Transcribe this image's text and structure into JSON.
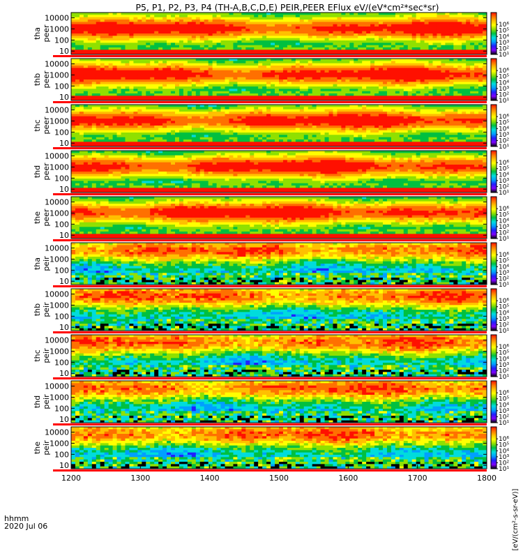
{
  "chart_data": {
    "type": "heatmap",
    "title": "P5, P1, P2, P3, P4 (TH-A,B,C,D,E) PEIR,PEER EFlux eV/(eV*cm²*sec*sr)",
    "colorbar_label": "[eV/(cm²-s-sr-eV)]",
    "colorbar_label_repeat": "eV/(cm²-s-sr-eV)",
    "x_unit_label": "hhmm",
    "date_label": "2020 Jul 06",
    "xlim": [
      1200,
      1800
    ],
    "x_ticks": [
      "1200",
      "1300",
      "1400",
      "1500",
      "1600",
      "1700",
      "1800"
    ],
    "y_scale": "log",
    "ylim": [
      5,
      30000
    ],
    "y_ticks": [
      "10",
      "100",
      "1000",
      "10000"
    ],
    "colorbar_scale": "log",
    "colorbar_range": [
      10,
      100000000
    ],
    "colorbar_ticks": [
      "10¹",
      "10²",
      "10³",
      "10⁴",
      "10⁵",
      "10⁶"
    ],
    "colors": {
      "bad_data_bar": "#ff0000",
      "palette": [
        "#000000",
        "#7f00ff",
        "#2020ff",
        "#00a0ff",
        "#00dcdc",
        "#00c040",
        "#90e000",
        "#ffff00",
        "#ffc000",
        "#ff7000",
        "#ff1000"
      ]
    },
    "panels": [
      {
        "probe": "tha",
        "species": "peer"
      },
      {
        "probe": "thb",
        "species": "peer"
      },
      {
        "probe": "thc",
        "species": "peer"
      },
      {
        "probe": "thd",
        "species": "peer"
      },
      {
        "probe": "the",
        "species": "peer"
      },
      {
        "probe": "tha",
        "species": "peir"
      },
      {
        "probe": "thb",
        "species": "peir"
      },
      {
        "probe": "thc",
        "species": "peir"
      },
      {
        "probe": "thd",
        "species": "peir"
      },
      {
        "probe": "the",
        "species": "peir"
      }
    ]
  }
}
